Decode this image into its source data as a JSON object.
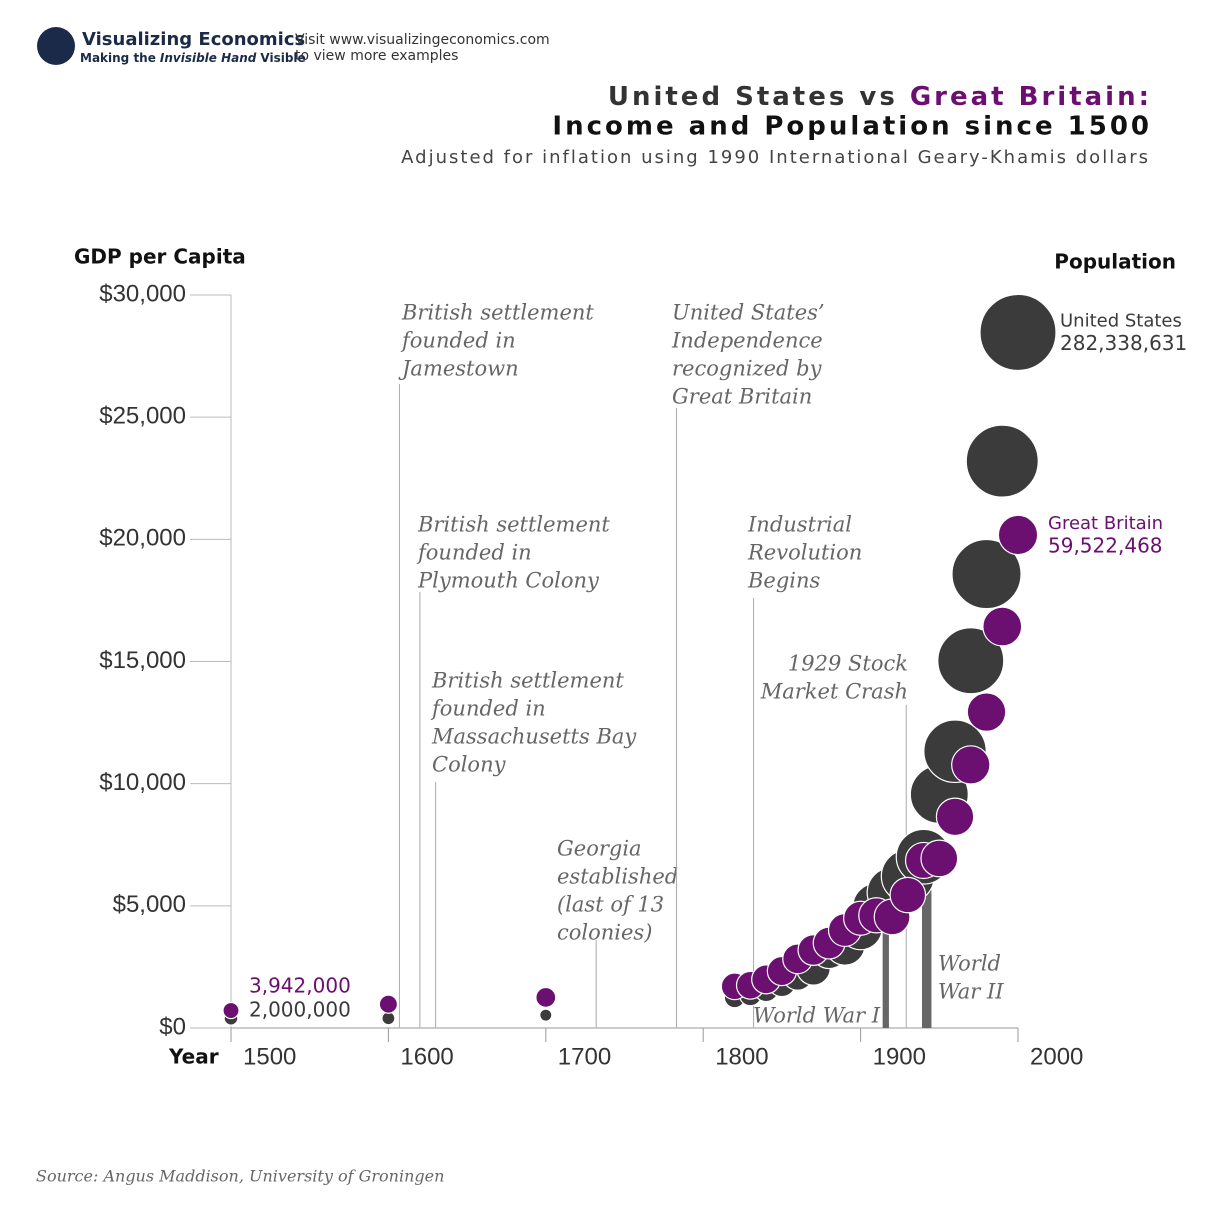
{
  "header": {
    "logo_name": "Visualizing Economics",
    "logo_tagline": [
      "Making the",
      "Invisible Hand",
      "Visible"
    ],
    "visit_lines": [
      "Visit www.visualizingeconomics.com",
      "to view more examples"
    ]
  },
  "chart_data": {
    "type": "bubble",
    "title": [
      "United States vs",
      "Great Britain:",
      "Income and Population since 1500"
    ],
    "subtitle": "Adjusted for inflation using 1990 International Geary-Khamis dollars",
    "y_label": "GDP per Capita",
    "size_label": "Population",
    "x_label": "Year",
    "x": [
      1500,
      1600,
      1700,
      1820,
      1830,
      1840,
      1850,
      1860,
      1870,
      1880,
      1890,
      1900,
      1910,
      1920,
      1930,
      1940,
      1950,
      1960,
      1970,
      1980,
      1990,
      2000
    ],
    "xlim": [
      1500,
      2000
    ],
    "xticks": [
      1500,
      1600,
      1700,
      1800,
      1900,
      2000
    ],
    "ylim": [
      0,
      30000
    ],
    "yticks": [
      {
        "value": 0,
        "label": "$0"
      },
      {
        "value": 5000,
        "label": "$5,000"
      },
      {
        "value": 10000,
        "label": "$10,000"
      },
      {
        "value": 15000,
        "label": "$15,000"
      },
      {
        "value": 20000,
        "label": "$20,000"
      },
      {
        "value": 25000,
        "label": "$25,000"
      },
      {
        "value": 30000,
        "label": "$30,000"
      }
    ],
    "series": [
      {
        "name": "United States",
        "color": "#3b3b3b",
        "values": [
          400,
          400,
          527,
          1257,
          1376,
          1588,
          1849,
          2178,
          2445,
          3184,
          3392,
          4091,
          4964,
          5552,
          6213,
          7010,
          9561,
          11328,
          15030,
          18577,
          23201,
          28467
        ],
        "sizes": [
          2000000,
          1500000,
          1000000,
          9981000,
          12980000,
          17120000,
          23580000,
          31839000,
          40241000,
          50458000,
          63302000,
          76391000,
          92767000,
          106881000,
          123668000,
          132637000,
          152271000,
          180671000,
          205052000,
          227726000,
          250132000,
          282338631
        ],
        "size_labels": [
          "2,000,000",
          null,
          null,
          null,
          null,
          null,
          null,
          null,
          null,
          null,
          null,
          null,
          null,
          null,
          null,
          null,
          null,
          null,
          null,
          null,
          null,
          "282,338,631"
        ]
      },
      {
        "name": "Great Britain",
        "color": "#6b0f70",
        "values": [
          714,
          974,
          1250,
          1706,
          1749,
          1990,
          2330,
          2830,
          3190,
          3477,
          4009,
          4492,
          4611,
          4548,
          5441,
          6856,
          6939,
          8645,
          10767,
          12931,
          16430,
          20180
        ],
        "sizes": [
          3942000,
          6170000,
          8565000,
          21239000,
          24028000,
          26758000,
          27181000,
          28888000,
          31400000,
          34623000,
          37485000,
          41155000,
          44916000,
          46821000,
          45866000,
          48226000,
          50127000,
          52372000,
          55632000,
          56314000,
          57561000,
          59522468
        ],
        "size_labels": [
          "3,942,000",
          null,
          null,
          null,
          null,
          null,
          null,
          null,
          null,
          null,
          null,
          null,
          null,
          null,
          null,
          null,
          null,
          null,
          null,
          null,
          null,
          "59,522,468"
        ]
      }
    ],
    "events": [
      {
        "lines": [
          "British settlement",
          "founded in",
          "Jamestown"
        ],
        "year": 1607
      },
      {
        "lines": [
          "British settlement",
          "founded in",
          "Plymouth Colony"
        ],
        "year": 1620
      },
      {
        "lines": [
          "British settlement",
          "founded in",
          "Massachusetts Bay",
          "Colony"
        ],
        "year": 1630
      },
      {
        "lines": [
          "Georgia",
          "established",
          "(last of 13",
          "colonies)"
        ],
        "year": 1732
      },
      {
        "lines": [
          "United States’",
          "Independence",
          "recognized by",
          "Great Britain"
        ],
        "year": 1783
      },
      {
        "lines": [
          "Industrial",
          "Revolution",
          "Begins"
        ],
        "year": 1832
      },
      {
        "lines": [
          "1929 Stock",
          "Market Crash"
        ],
        "year": 1929
      }
    ],
    "wars": [
      {
        "lines": [
          "World War I"
        ],
        "start": 1914,
        "end": 1918
      },
      {
        "lines": [
          "World",
          "War II"
        ],
        "start": 1939,
        "end": 1945
      }
    ],
    "source": "Source: Angus Maddison, University of Groningen"
  }
}
